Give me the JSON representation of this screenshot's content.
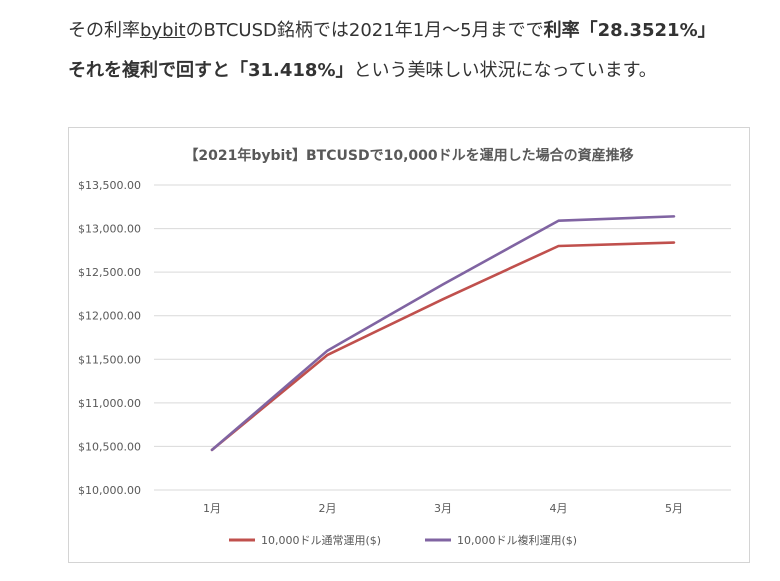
{
  "article": {
    "line1_prefix": "その利率",
    "line1_link": "bybit",
    "line1_mid": "のBTCUSD銘柄では2021年1月〜5月までで",
    "line1_bold": "利率「28.3521%」",
    "line2_bold": "それを複利で回すと「31.418%」",
    "line2_suffix": "という美味しい状況になっています。"
  },
  "chart_data": {
    "type": "line",
    "title": "【2021年bybit】BTCUSDで10,000ドルを運用した場合の資産推移",
    "categories": [
      "1月",
      "2月",
      "3月",
      "4月",
      "5月"
    ],
    "ylim": [
      10000,
      13500
    ],
    "yticks": [
      10000,
      10500,
      11000,
      11500,
      12000,
      12500,
      13000,
      13500
    ],
    "ytick_labels": [
      "$10,000.00",
      "$10,500.00",
      "$11,000.00",
      "$11,500.00",
      "$12,000.00",
      "$12,500.00",
      "$13,000.00",
      "$13,500.00"
    ],
    "grid": true,
    "legend_position": "bottom",
    "series": [
      {
        "name": "10,000ドル通常運用($)",
        "color": "#c0504d",
        "values": [
          10460,
          11550,
          12190,
          12800,
          12840
        ]
      },
      {
        "name": "10,000ドル複利運用($)",
        "color": "#8064a2",
        "values": [
          10460,
          11600,
          12360,
          13090,
          13140
        ]
      }
    ]
  }
}
